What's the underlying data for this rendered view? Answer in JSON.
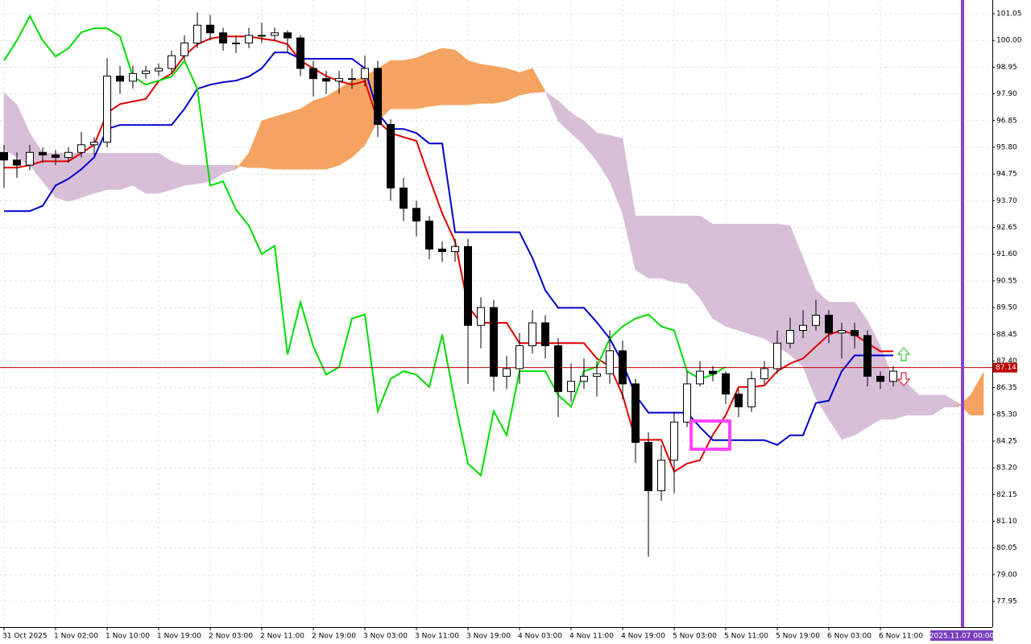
{
  "chart_data": {
    "type": "candlestick",
    "xlim": [
      -0.3125,
      76.6875
    ],
    "xticks": [
      {
        "value": 0,
        "label": "31 Oct 2025"
      },
      {
        "value": 4,
        "label": "1 Nov 02:00"
      },
      {
        "value": 8,
        "label": "1 Nov 10:00"
      },
      {
        "value": 12,
        "label": "1 Nov 19:00"
      },
      {
        "value": 16,
        "label": "2 Nov 03:00"
      },
      {
        "value": 20,
        "label": "2 Nov 11:00"
      },
      {
        "value": 24,
        "label": "2 Nov 19:00"
      },
      {
        "value": 28,
        "label": "3 Nov 03:00"
      },
      {
        "value": 32,
        "label": "3 Nov 11:00"
      },
      {
        "value": 36,
        "label": "3 Nov 19:00"
      },
      {
        "value": 40,
        "label": "4 Nov 03:00"
      },
      {
        "value": 44,
        "label": "4 Nov 11:00"
      },
      {
        "value": 48,
        "label": "4 Nov 19:00"
      },
      {
        "value": 52,
        "label": "5 Nov 03:00"
      },
      {
        "value": 56,
        "label": "5 Nov 11:00"
      },
      {
        "value": 60,
        "label": "5 Nov 19:00"
      },
      {
        "value": 64,
        "label": "6 Nov 03:00"
      },
      {
        "value": 68,
        "label": "6 Nov 11:00"
      }
    ],
    "ylim": [
      76.94,
      101.59
    ],
    "yticks": [
      101.05,
      {
        "value": 100,
        "label": "100.00"
      },
      98.95,
      {
        "value": 97.9,
        "label": "97.90"
      },
      96.85,
      {
        "value": 95.8,
        "label": "95.80"
      },
      94.75,
      {
        "value": 93.7,
        "label": "93.70"
      },
      92.65,
      {
        "value": 91.6,
        "label": "91.60"
      },
      90.55,
      {
        "value": 89.5,
        "label": "89.50"
      },
      88.45,
      {
        "value": 87.4,
        "label": "87.40"
      },
      86.35,
      {
        "value": 85.3,
        "label": "85.30"
      },
      84.25,
      {
        "value": 83.2,
        "label": "83.20"
      },
      82.15,
      {
        "value": 81.1,
        "label": "81.10"
      },
      80.05,
      {
        "value": 79,
        "label": "79.00"
      },
      77.95
    ],
    "grid": true,
    "candles": {
      "up_color": "#ffffff",
      "down_color": "#000000",
      "edge_color": "#000000",
      "open": [
        95.6,
        95.3,
        95.1,
        95.6,
        95.5,
        95.4,
        95.6,
        95.9,
        96.0,
        98.6,
        98.4,
        98.7,
        98.8,
        98.9,
        99.4,
        99.9,
        100.6,
        100.3,
        99.9,
        99.9,
        100.2,
        100.2,
        100.3,
        100.1,
        98.9,
        98.5,
        98.4,
        98.5,
        98.5,
        98.9,
        96.7,
        94.2,
        93.4,
        92.9,
        91.8,
        91.7,
        91.9,
        88.8,
        89.5,
        86.8,
        87.1,
        88.0,
        88.9,
        88.0,
        86.2,
        86.6,
        86.8,
        86.9,
        87.8,
        86.5,
        84.2,
        82.3,
        83.5,
        85.0,
        86.5,
        87.0,
        86.9,
        86.1,
        85.6,
        86.7,
        87.1,
        88.1,
        88.6,
        88.8,
        89.2,
        88.5,
        88.6,
        88.4,
        86.8,
        86.6,
        null,
        null,
        null,
        null,
        null,
        null,
        null
      ],
      "high": [
        95.9,
        95.6,
        95.9,
        95.8,
        95.7,
        95.8,
        96.4,
        96.2,
        99.3,
        99.0,
        99.0,
        99.0,
        99.1,
        99.6,
        100.2,
        101.1,
        101.0,
        100.5,
        100.2,
        100.5,
        100.7,
        100.5,
        100.4,
        100.2,
        99.2,
        98.8,
        98.8,
        98.9,
        99.4,
        99.2,
        96.9,
        94.6,
        93.7,
        93.1,
        92.1,
        92.2,
        92.2,
        89.9,
        89.8,
        87.6,
        88.5,
        89.4,
        89.2,
        88.3,
        87.3,
        87.5,
        87.4,
        88.6,
        88.2,
        86.7,
        84.6,
        84.1,
        85.4,
        87.0,
        87.4,
        87.2,
        87.0,
        86.3,
        87.0,
        87.4,
        88.6,
        89.1,
        89.4,
        89.8,
        89.4,
        88.9,
        88.9,
        88.6,
        87.0,
        87.2,
        null,
        null,
        null,
        null,
        null,
        null,
        null
      ],
      "low": [
        94.2,
        94.6,
        94.9,
        95.2,
        95.1,
        95.2,
        95.4,
        95.5,
        95.8,
        97.9,
        98.1,
        98.5,
        98.6,
        98.7,
        99.2,
        99.7,
        100.0,
        99.6,
        99.5,
        99.7,
        99.9,
        100.0,
        99.5,
        98.6,
        97.8,
        97.9,
        97.9,
        98.1,
        98.2,
        96.2,
        93.7,
        92.9,
        92.3,
        91.4,
        91.3,
        91.3,
        86.5,
        87.9,
        86.2,
        86.3,
        86.5,
        87.7,
        87.5,
        85.2,
        85.8,
        86.3,
        86.0,
        86.5,
        85.9,
        83.4,
        79.7,
        81.9,
        82.2,
        84.8,
        86.4,
        86.6,
        85.7,
        85.2,
        85.4,
        86.5,
        86.9,
        87.9,
        88.3,
        88.6,
        88.1,
        87.5,
        87.9,
        86.4,
        86.3,
        86.4,
        null,
        null,
        null,
        null,
        null,
        null,
        null
      ],
      "close": [
        95.3,
        95.1,
        95.6,
        95.5,
        95.4,
        95.6,
        95.9,
        96.0,
        98.6,
        98.4,
        98.7,
        98.8,
        98.9,
        99.4,
        99.9,
        100.6,
        100.3,
        99.9,
        99.9,
        100.2,
        100.2,
        100.3,
        100.1,
        98.9,
        98.5,
        98.4,
        98.5,
        98.5,
        98.9,
        96.7,
        94.2,
        93.4,
        92.9,
        91.8,
        91.7,
        91.9,
        88.8,
        89.5,
        86.8,
        87.1,
        88.0,
        88.9,
        88.0,
        86.2,
        86.6,
        86.8,
        86.9,
        87.8,
        86.5,
        84.2,
        82.3,
        83.5,
        85.0,
        86.5,
        87.0,
        86.9,
        86.1,
        85.6,
        86.7,
        87.1,
        88.1,
        88.6,
        88.8,
        89.2,
        88.5,
        88.6,
        88.4,
        86.8,
        86.6,
        87.0,
        null,
        null,
        null,
        null,
        null,
        null,
        null
      ]
    },
    "cloud": {
      "up_color": "#f4a460",
      "down_color": "#d8bfd8",
      "a": [
        95.73,
        95.41,
        95.09,
        94.46,
        93.83,
        93.67,
        93.83,
        93.99,
        94.14,
        94.14,
        94.3,
        93.99,
        93.99,
        94.14,
        94.3,
        94.37,
        94.46,
        94.78,
        94.94,
        95.57,
        96.84,
        97.0,
        97.15,
        97.31,
        97.63,
        97.79,
        98.1,
        98.42,
        98.58,
        98.9,
        99.21,
        99.21,
        99.31,
        99.53,
        99.69,
        99.63,
        99.21,
        99.06,
        98.99,
        98.9,
        98.74,
        98.9,
        98.0,
        96.84,
        96.36,
        95.89,
        95.25,
        94.46,
        93.19,
        90.98,
        90.66,
        90.66,
        90.5,
        90.44,
        89.87,
        89.07,
        88.76,
        88.6,
        88.44,
        88.28,
        87.97,
        87.65,
        87.17,
        85.91,
        85.11,
        84.32,
        84.48,
        84.8,
        85.11,
        85.11,
        85.27,
        85.27,
        85.27,
        85.59,
        85.59,
        86.06,
        86.95
      ],
      "b": [
        97.95,
        97.47,
        96.36,
        95.57,
        95.57,
        95.57,
        95.57,
        95.57,
        95.57,
        95.57,
        95.57,
        95.57,
        95.57,
        95.25,
        95.09,
        95.09,
        95.09,
        95.09,
        95.09,
        95.0,
        95.0,
        94.94,
        94.94,
        94.94,
        94.94,
        94.94,
        95.09,
        95.41,
        95.89,
        96.84,
        97.31,
        97.31,
        97.31,
        97.41,
        97.47,
        97.47,
        97.47,
        97.53,
        97.53,
        97.63,
        97.85,
        97.95,
        97.98,
        97.63,
        97.15,
        96.84,
        96.36,
        96.27,
        96.14,
        93.1,
        93.1,
        93.1,
        93.1,
        93.1,
        93.1,
        92.78,
        92.78,
        92.78,
        92.78,
        92.78,
        92.78,
        92.72,
        91.45,
        90.18,
        89.71,
        89.71,
        89.71,
        88.98,
        87.97,
        86.7,
        86.54,
        86.06,
        86.06,
        86.06,
        85.75,
        85.27,
        85.27
      ]
    },
    "lines": [
      {
        "color": "#e00000",
        "values": [
          95.0,
          95.0,
          95.1,
          95.25,
          95.25,
          95.25,
          95.57,
          95.9,
          97.15,
          97.5,
          97.6,
          97.7,
          98.4,
          98.7,
          99.4,
          99.85,
          100.07,
          100.16,
          100.16,
          100.16,
          100.07,
          100.0,
          99.85,
          99.2,
          98.9,
          98.6,
          98.4,
          98.26,
          98.4,
          96.84,
          96.36,
          96.2,
          96.05,
          94.6,
          93.2,
          92.1,
          89.55,
          88.9,
          88.9,
          88.9,
          88.1,
          88.1,
          88.1,
          88.1,
          88.1,
          88.1,
          87.5,
          87.2,
          86.06,
          84.3,
          84.3,
          84.3,
          83.05,
          83.37,
          83.5,
          84.5,
          85.27,
          86.38,
          86.38,
          86.44,
          87.0,
          87.3,
          87.5,
          87.97,
          88.44,
          88.6,
          88.44,
          88.1,
          87.78,
          87.78,
          null,
          null,
          null,
          null,
          null,
          null,
          null
        ]
      },
      {
        "color": "#0000cc",
        "values": [
          93.29,
          93.29,
          93.29,
          93.5,
          94.3,
          94.56,
          94.94,
          95.41,
          96.52,
          96.68,
          96.68,
          96.68,
          96.68,
          96.68,
          97.31,
          98.1,
          98.26,
          98.36,
          98.42,
          98.58,
          98.9,
          99.53,
          99.53,
          99.28,
          99.28,
          99.28,
          99.28,
          99.28,
          98.9,
          97.15,
          96.52,
          96.52,
          96.36,
          95.95,
          95.95,
          92.46,
          92.46,
          92.46,
          92.46,
          92.46,
          92.46,
          91.45,
          90.18,
          89.49,
          89.49,
          89.49,
          88.92,
          88.28,
          87.33,
          86.06,
          85.37,
          85.37,
          85.37,
          85.37,
          84.8,
          84.29,
          84.29,
          84.29,
          84.29,
          84.29,
          84.1,
          84.48,
          84.48,
          85.75,
          85.84,
          87.0,
          87.62,
          87.62,
          87.62,
          87.62,
          null,
          null,
          null,
          null,
          null,
          null,
          null
        ]
      },
      {
        "color": "#00dd00",
        "values": [
          99.21,
          100.0,
          100.96,
          100.0,
          99.37,
          99.69,
          100.32,
          100.48,
          100.48,
          100.16,
          98.58,
          98.26,
          98.42,
          98.58,
          99.2,
          98.1,
          94.3,
          94.46,
          93.35,
          92.72,
          91.6,
          91.93,
          87.65,
          89.71,
          87.97,
          86.86,
          87.17,
          89.07,
          89.23,
          85.43,
          86.7,
          87.0,
          86.86,
          86.38,
          88.44,
          85.75,
          83.37,
          82.9,
          85.43,
          84.48,
          87.0,
          87.0,
          87.0,
          86.06,
          85.6,
          87.0,
          87.17,
          88.28,
          88.76,
          89.07,
          89.23,
          88.76,
          88.6,
          87.0,
          86.7,
          86.86,
          87.17,
          null,
          null,
          null,
          null,
          null,
          null,
          null,
          null,
          null,
          null,
          null,
          null,
          null,
          null,
          null,
          null,
          null,
          null,
          null,
          null
        ]
      }
    ],
    "last_price": 87.14,
    "last_price_color": "#c00000",
    "marker_label": "2025.11.07 00:00"
  }
}
